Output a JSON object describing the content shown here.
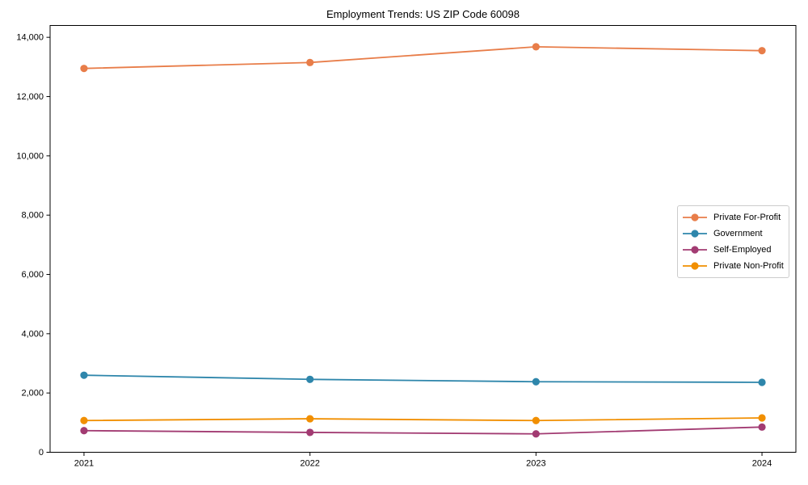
{
  "chart_data": {
    "type": "line",
    "title": "Employment Trends: US ZIP Code 60098",
    "xlabel": "",
    "ylabel": "",
    "categories": [
      "2021",
      "2022",
      "2023",
      "2024"
    ],
    "series": [
      {
        "name": "Private For-Profit",
        "color": "#E87D49",
        "values": [
          12950,
          13150,
          13680,
          13550
        ]
      },
      {
        "name": "Government",
        "color": "#2E86AB",
        "values": [
          2600,
          2460,
          2380,
          2360
        ]
      },
      {
        "name": "Self-Employed",
        "color": "#A23B72",
        "values": [
          730,
          670,
          620,
          850
        ]
      },
      {
        "name": "Private Non-Profit",
        "color": "#F18F01",
        "values": [
          1070,
          1130,
          1070,
          1160
        ]
      }
    ],
    "ylim": [
      0,
      14400
    ],
    "yticks": [
      0,
      2000,
      4000,
      6000,
      8000,
      10000,
      12000,
      14000
    ],
    "ytick_labels": [
      "0",
      "2,000",
      "4,000",
      "6,000",
      "8,000",
      "10,000",
      "12,000",
      "14,000"
    ],
    "grid": false,
    "legend_position": "middle-right",
    "axis_color": "#000000",
    "text_color": "#000000",
    "background_color": "#ffffff"
  }
}
